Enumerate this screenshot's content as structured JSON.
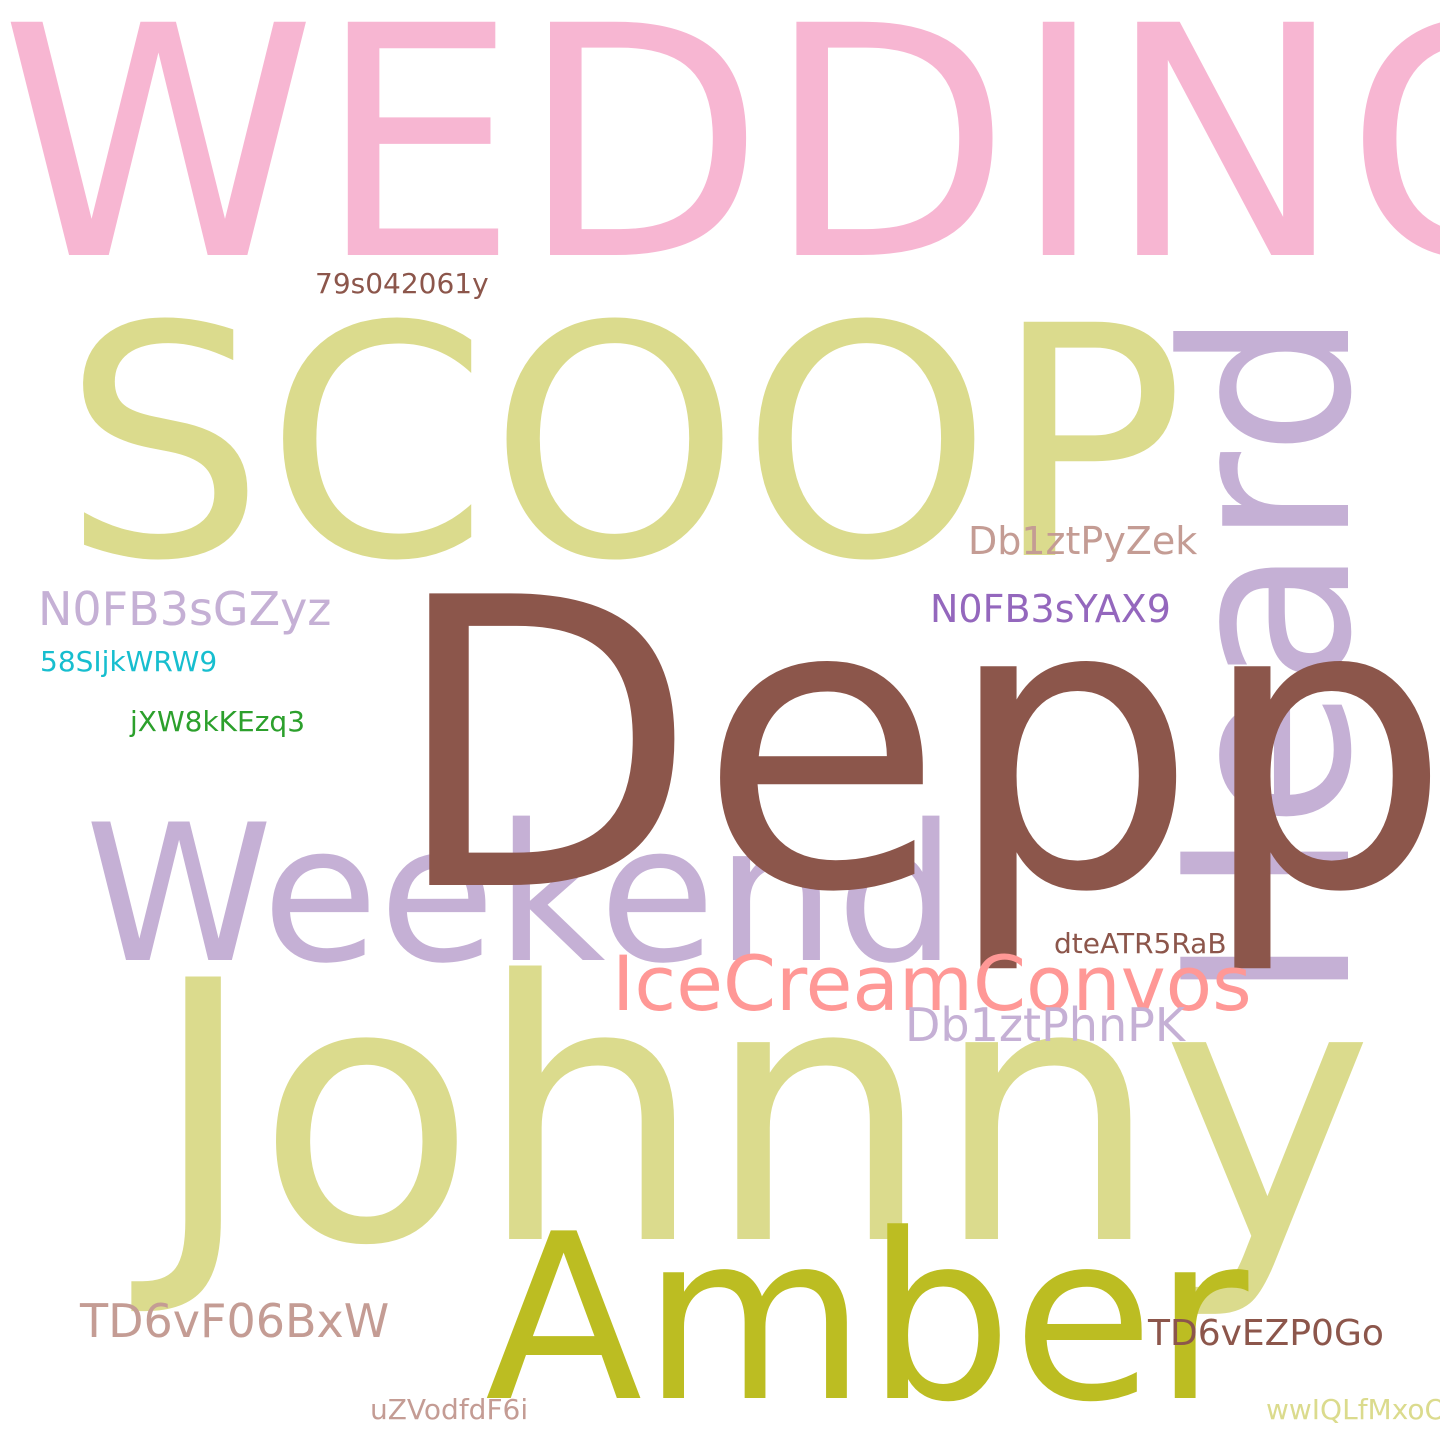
{
  "palette": {
    "pink": "#f7b6d2",
    "olive_light": "#dbdb8d",
    "brown": "#8c564b",
    "lavender": "#c5b0d5",
    "salmon": "#ff9896",
    "olive": "#bcbd22",
    "tan": "#c49c94",
    "purple": "#9467bd",
    "cyan": "#17becf",
    "green": "#2ca02c"
  },
  "words": {
    "wedding": "WEDDING",
    "scoop": "SCOOP",
    "depp": "Depp",
    "heard": "Heard",
    "weekend": "Weekend",
    "johnny": "Johnny",
    "amber": "Amber",
    "icecreamconvos": "IceCreamConvos",
    "db1ztphnpk": "Db1ztPhnPK",
    "db1ztpyzek": "Db1ztPyZek",
    "n0fb3sgzyz": "N0FB3sGZyz",
    "n0fb3syax9": "N0FB3sYAX9",
    "s58sijkwrw9": "58SIjkWRW9",
    "jxw8kkezq3": "jXW8kKEzq3",
    "s79s042061y": "79s042061y",
    "dteatr5rab": "dteATR5RaB",
    "td6vf06bxw": "TD6vF06BxW",
    "td6vezp0go": "TD6vEZP0Go",
    "uzvodfdf6i": "uZVodfdF6i",
    "wwiqlfmxoo": "wwIQLfMxoO"
  }
}
